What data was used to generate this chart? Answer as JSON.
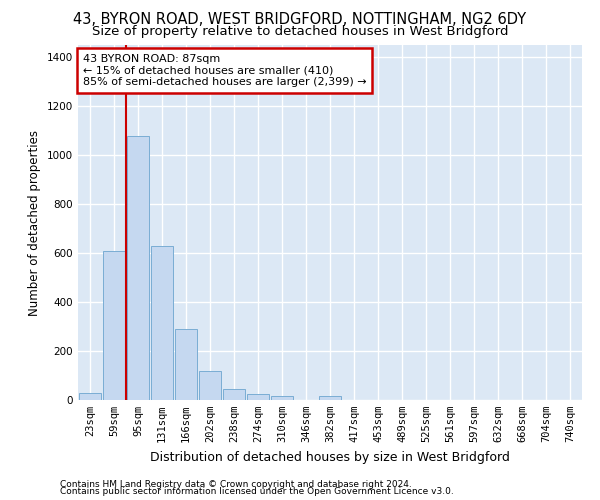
{
  "title_line1": "43, BYRON ROAD, WEST BRIDGFORD, NOTTINGHAM, NG2 6DY",
  "title_line2": "Size of property relative to detached houses in West Bridgford",
  "xlabel": "Distribution of detached houses by size in West Bridgford",
  "ylabel": "Number of detached properties",
  "footnote1": "Contains HM Land Registry data © Crown copyright and database right 2024.",
  "footnote2": "Contains public sector information licensed under the Open Government Licence v3.0.",
  "bar_categories": [
    "23sqm",
    "59sqm",
    "95sqm",
    "131sqm",
    "166sqm",
    "202sqm",
    "238sqm",
    "274sqm",
    "310sqm",
    "346sqm",
    "382sqm",
    "417sqm",
    "453sqm",
    "489sqm",
    "525sqm",
    "561sqm",
    "597sqm",
    "632sqm",
    "668sqm",
    "704sqm",
    "740sqm"
  ],
  "bar_values": [
    30,
    610,
    1080,
    630,
    290,
    120,
    45,
    25,
    15,
    0,
    15,
    0,
    0,
    0,
    0,
    0,
    0,
    0,
    0,
    0,
    0
  ],
  "bar_color": "#c5d8f0",
  "bar_edgecolor": "#7aadd4",
  "vline_x": 2,
  "vline_color": "#cc0000",
  "annotation_text": "43 BYRON ROAD: 87sqm\n← 15% of detached houses are smaller (410)\n85% of semi-detached houses are larger (2,399) →",
  "annotation_box_color": "#cc0000",
  "annotation_text_color": "#000000",
  "ylim": [
    0,
    1450
  ],
  "yticks": [
    0,
    200,
    400,
    600,
    800,
    1000,
    1200,
    1400
  ],
  "background_color": "#dce8f5",
  "grid_color": "#ffffff",
  "title1_fontsize": 10.5,
  "title2_fontsize": 9.5,
  "xlabel_fontsize": 9,
  "ylabel_fontsize": 8.5,
  "tick_fontsize": 7.5,
  "annot_fontsize": 8.0,
  "footnote_fontsize": 6.5
}
